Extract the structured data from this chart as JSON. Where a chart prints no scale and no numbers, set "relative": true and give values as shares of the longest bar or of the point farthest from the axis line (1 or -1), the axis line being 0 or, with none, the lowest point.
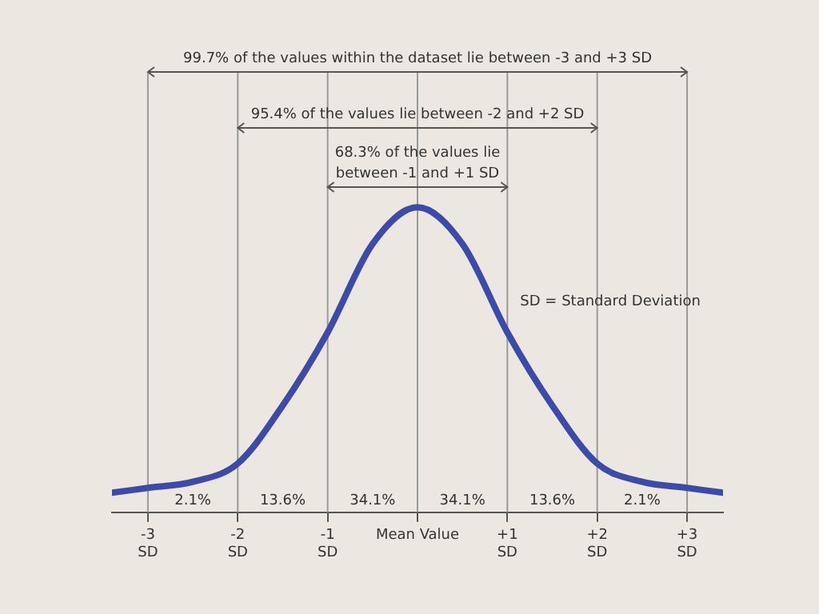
{
  "chart_data": {
    "type": "line",
    "relative": true,
    "x": [
      -3.4,
      -3,
      -2.5,
      -2,
      -1.5,
      -1,
      -0.5,
      0,
      0.5,
      1,
      1.5,
      2,
      2.5,
      3,
      3.4
    ],
    "series": [
      {
        "color": "#3d4aa8",
        "values": [
          0.064,
          0.08,
          0.1,
          0.16,
          0.35,
          0.59,
          0.88,
          1,
          0.88,
          0.59,
          0.35,
          0.16,
          0.1,
          0.08,
          0.064
        ]
      }
    ],
    "xlim": [
      -3.4,
      3.4
    ],
    "xticks": [
      {
        "value": -3,
        "label": "-3\nSD"
      },
      {
        "value": -2,
        "label": "-2\nSD"
      },
      {
        "value": -1,
        "label": "-1\nSD"
      },
      {
        "value": 0,
        "label": "Mean Value"
      },
      {
        "value": 1,
        "label": "+1\nSD"
      },
      {
        "value": 2,
        "label": "+2\nSD"
      },
      {
        "value": 3,
        "label": "+3\nSD"
      }
    ],
    "ref_lines": [
      {
        "axis": "x",
        "value": -3
      },
      {
        "axis": "x",
        "value": -2
      },
      {
        "axis": "x",
        "value": -1
      },
      {
        "axis": "x",
        "value": 0
      },
      {
        "axis": "x",
        "value": 1
      },
      {
        "axis": "x",
        "value": 2
      },
      {
        "axis": "x",
        "value": 3
      }
    ],
    "annotations": [
      "99.7% of the values within the dataset lie between -3 and +3 SD",
      "95.4% of the values lie between -2 and +2 SD",
      "68.3% of the values lie\nbetween -1 and +1 SD",
      "2.1%",
      "13.6%",
      "34.1%",
      "34.1%",
      "13.6%",
      "2.1%",
      "SD = Standard Deviation"
    ],
    "grid": false,
    "marker": "none",
    "line_style": "solid"
  }
}
